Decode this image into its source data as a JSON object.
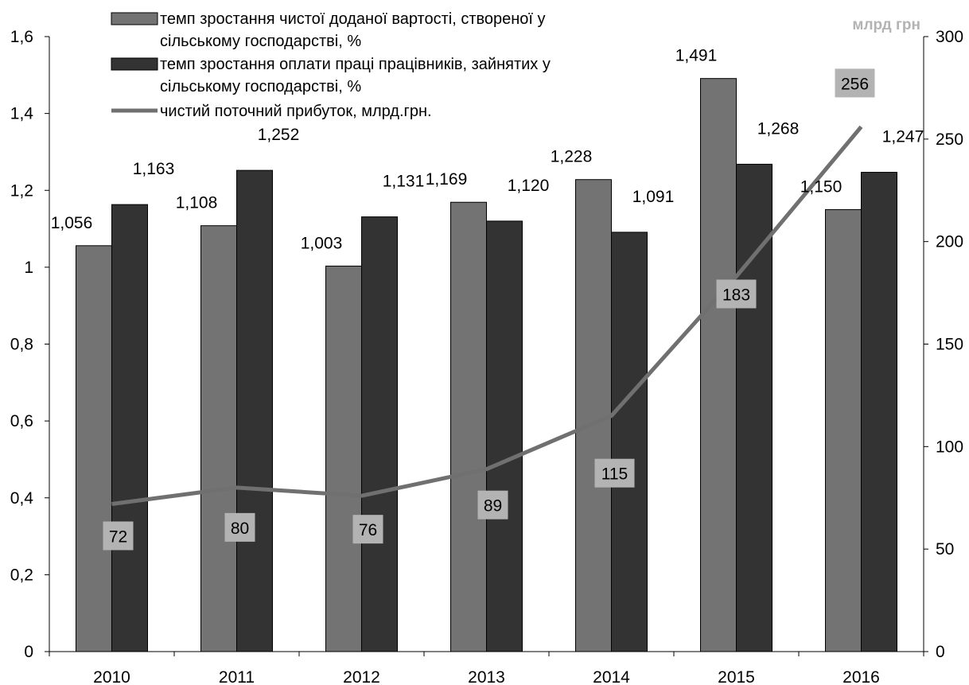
{
  "chart_data": {
    "type": "bar",
    "categories": [
      "2010",
      "2011",
      "2012",
      "2013",
      "2014",
      "2015",
      "2016"
    ],
    "series": [
      {
        "name_lines": [
          "темп зростання чистої доданої вартості, створеної у",
          "сільському господарстві, %"
        ],
        "kind": "bar",
        "axis": "left",
        "color": "#737373",
        "values": [
          1.056,
          1.108,
          1.003,
          1.169,
          1.228,
          1.491,
          1.15
        ],
        "labels": [
          "1,056",
          "1,108",
          "1,003",
          "1,169",
          "1,228",
          "1,491",
          "1,150"
        ]
      },
      {
        "name_lines": [
          "темп зростання оплати праці працівників, зайнятих у",
          "сільському господарстві, %"
        ],
        "kind": "bar",
        "axis": "left",
        "color": "#333333",
        "values": [
          1.163,
          1.252,
          1.131,
          1.12,
          1.091,
          1.268,
          1.247
        ],
        "labels": [
          "1,163",
          "1,252",
          "1,131",
          "1,120",
          "1,091",
          "1,268",
          "1,247"
        ]
      },
      {
        "name_lines": [
          "чистий поточний прибуток, млрд.грн."
        ],
        "kind": "line",
        "axis": "right",
        "color": "#707070",
        "label_bg": "#b3b3b3",
        "values": [
          72,
          80,
          76,
          89,
          115,
          183,
          256
        ],
        "labels": [
          "72",
          "80",
          "76",
          "89",
          "115",
          "183",
          "256"
        ]
      }
    ],
    "y_left": {
      "ylim": [
        0,
        1.6
      ],
      "ticks": [
        0,
        0.2,
        0.4,
        0.6,
        0.8,
        1.0,
        1.2,
        1.4,
        1.6
      ],
      "tick_labels": [
        "0",
        "0,2",
        "0,4",
        "0,6",
        "0,8",
        "1",
        "1,2",
        "1,4",
        "1,6"
      ]
    },
    "y_right": {
      "ylim": [
        0,
        300
      ],
      "ticks": [
        0,
        50,
        100,
        150,
        200,
        250,
        300
      ],
      "tick_labels": [
        "0",
        "50",
        "100",
        "150",
        "200",
        "250",
        "300"
      ],
      "unit_label": "млрд грн"
    },
    "grid": false,
    "legend_position": "top-left"
  }
}
